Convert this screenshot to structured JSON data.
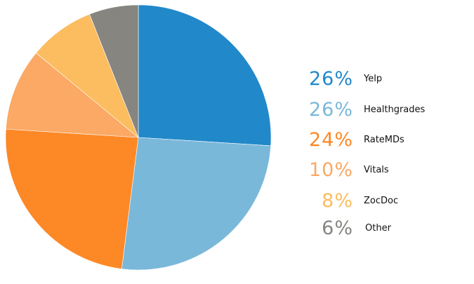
{
  "chart_data": {
    "type": "pie",
    "slices": [
      {
        "label": "Yelp",
        "value": 26,
        "pct_text": "26%",
        "color": "#2188c9"
      },
      {
        "label": "Healthgrades",
        "value": 26,
        "pct_text": "26%",
        "color": "#7ab8da"
      },
      {
        "label": "RateMDs",
        "value": 24,
        "pct_text": "24%",
        "color": "#fd8826"
      },
      {
        "label": "Vitals",
        "value": 10,
        "pct_text": "10%",
        "color": "#fba964"
      },
      {
        "label": "ZocDoc",
        "value": 8,
        "pct_text": "8%",
        "color": "#fbbd5f"
      },
      {
        "label": "Other",
        "value": 6,
        "pct_text": "6%",
        "color": "#868580"
      }
    ],
    "start_angle_deg": 0,
    "direction": "clockwise",
    "legend_position": "right"
  }
}
